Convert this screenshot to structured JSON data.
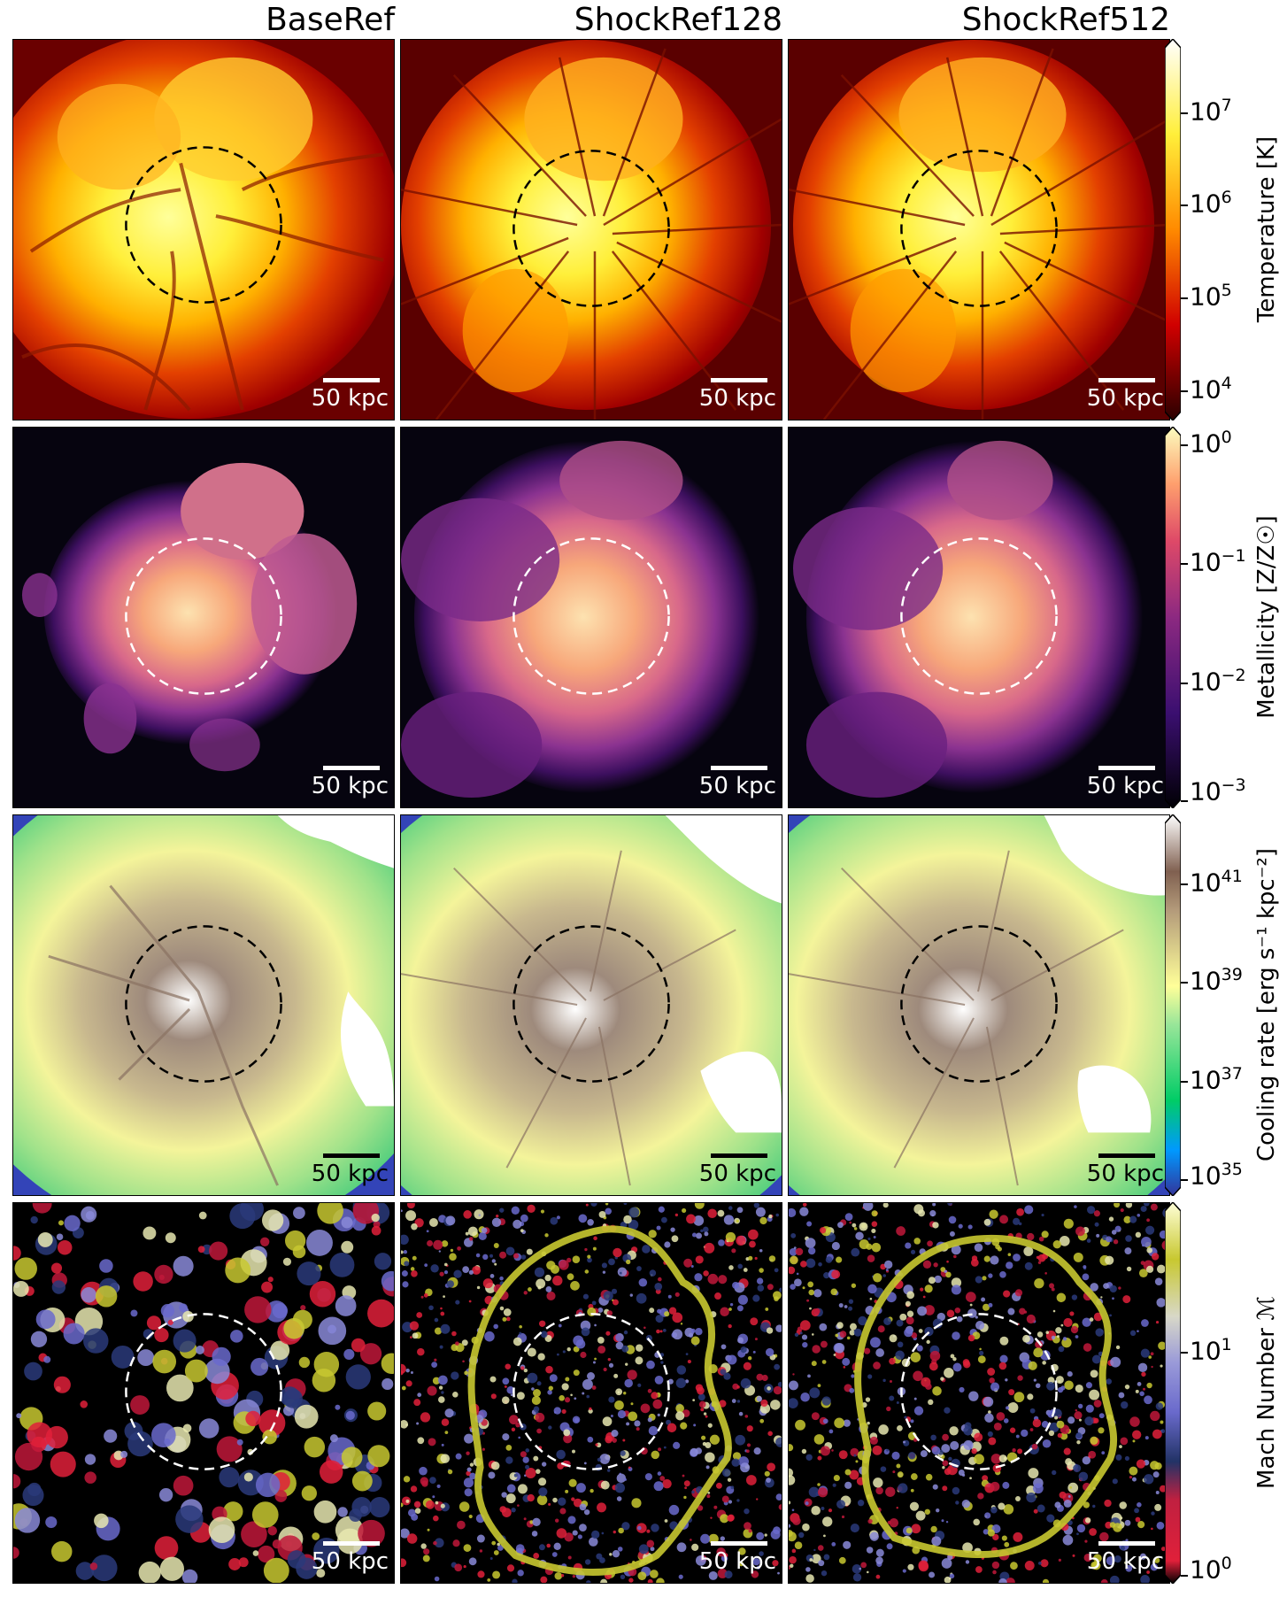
{
  "columns": [
    "BaseRef",
    "ShockRef128",
    "ShockRef512"
  ],
  "scale_bar_label": "50 kpc",
  "rows": [
    {
      "quantity": "temperature",
      "colormap": "hot",
      "circle_color": "#000000",
      "scale_bar_color": "#ffffff",
      "scale_label_color": "#ffffff",
      "colorbar": {
        "label": "Temperature [K]",
        "ticks": [
          {
            "base": "10",
            "exp": "7"
          },
          {
            "base": "10",
            "exp": "6"
          },
          {
            "base": "10",
            "exp": "5"
          },
          {
            "base": "10",
            "exp": "4"
          }
        ],
        "extend": "both"
      }
    },
    {
      "quantity": "metallicity",
      "colormap": "magma",
      "circle_color": "#ffffff",
      "scale_bar_color": "#ffffff",
      "scale_label_color": "#ffffff",
      "colorbar": {
        "label": "Metallicity [Z/Z☉]",
        "ticks": [
          {
            "base": "10",
            "exp": "0"
          },
          {
            "base": "10",
            "exp": "−1"
          },
          {
            "base": "10",
            "exp": "−2"
          },
          {
            "base": "10",
            "exp": "−3"
          }
        ],
        "extend": "both"
      }
    },
    {
      "quantity": "cooling rate",
      "colormap": "terrain",
      "circle_color": "#000000",
      "scale_bar_color": "#000000",
      "scale_label_color": "#000000",
      "colorbar": {
        "label": "Cooling rate [erg s⁻¹ kpc⁻²]",
        "ticks": [
          {
            "base": "10",
            "exp": "41"
          },
          {
            "base": "10",
            "exp": "39"
          },
          {
            "base": "10",
            "exp": "37"
          },
          {
            "base": "10",
            "exp": "35"
          }
        ],
        "extend": "both"
      }
    },
    {
      "quantity": "mach number",
      "colormap": "custom red-blue-yellow",
      "circle_color": "#ffffff",
      "scale_bar_color": "#ffffff",
      "scale_label_color": "#ffffff",
      "colorbar": {
        "label": "Mach Number ℳ",
        "ticks": [
          {
            "base": "10",
            "exp": "1"
          },
          {
            "base": "10",
            "exp": "0"
          }
        ],
        "extend": "both"
      }
    }
  ]
}
